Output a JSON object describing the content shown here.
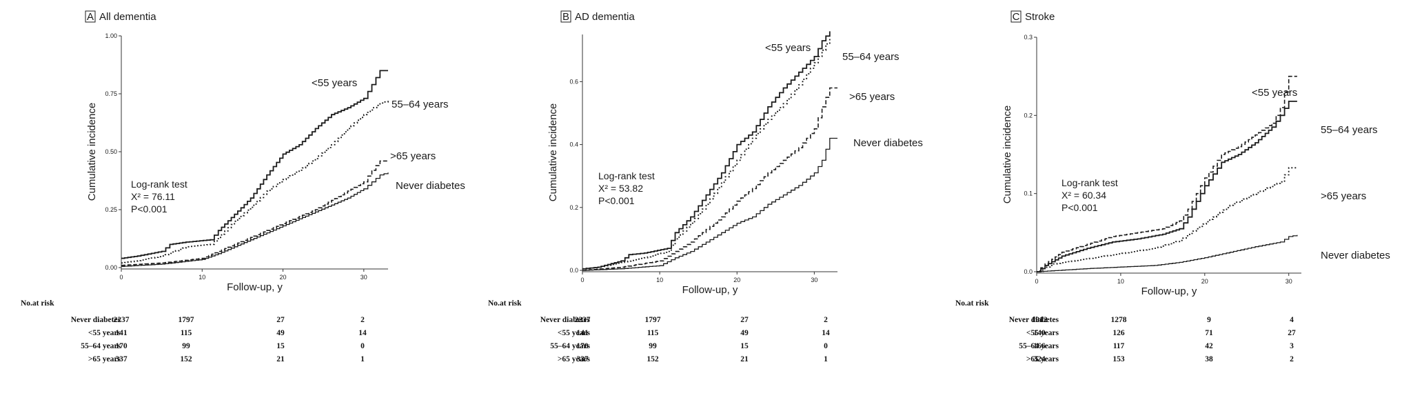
{
  "panels": [
    {
      "letter": "A",
      "title": "All dementia",
      "ylabel": "Cumulative incidence",
      "xlabel": "Follow-up, y",
      "annotation": [
        "Log-rank test",
        "X² = 76.11",
        "P<0.001"
      ],
      "table_title": "No.at risk"
    },
    {
      "letter": "B",
      "title": "AD dementia",
      "ylabel": "Cumulative incidence",
      "xlabel": "Follow-up, y",
      "annotation": [
        "Log-rank test",
        "X² = 53.82",
        "P<0.001"
      ],
      "table_title": "No.at risk"
    },
    {
      "letter": "C",
      "title": "Stroke",
      "ylabel": "Cumulative incidence",
      "xlabel": "Follow-up, y",
      "annotation": [
        "Log-rank test",
        "X² = 60.34",
        "P<0.001"
      ],
      "table_title": "No.at risk"
    }
  ],
  "chart_data": [
    {
      "type": "line",
      "title": "All dementia",
      "xlabel": "Follow-up, y",
      "ylabel": "Cumulative incidence",
      "xlim": [
        0,
        33
      ],
      "ylim": [
        0,
        1.0
      ],
      "xticks": [
        0,
        10,
        20,
        30
      ],
      "xtick_labels": [
        "0",
        "10",
        "20",
        "30"
      ],
      "yticks": [
        0,
        0.25,
        0.5,
        0.75,
        1.0
      ],
      "ytick_labels": [
        "0.00",
        "0.25",
        "0.50",
        "0.75",
        "1.00"
      ],
      "series": [
        {
          "name": "<55 years",
          "dash": "solid",
          "x": [
            0,
            2,
            5,
            6,
            8,
            11,
            12,
            14,
            16,
            18,
            20,
            22,
            24,
            26,
            28,
            30,
            31,
            32,
            33
          ],
          "y": [
            0.04,
            0.05,
            0.07,
            0.1,
            0.11,
            0.12,
            0.16,
            0.23,
            0.3,
            0.4,
            0.49,
            0.53,
            0.6,
            0.66,
            0.69,
            0.73,
            0.79,
            0.85,
            0.85
          ]
        },
        {
          "name": "55–64 years",
          "dash": "dot",
          "x": [
            0,
            2,
            5,
            8,
            11,
            12,
            14,
            16,
            18,
            20,
            22,
            24,
            26,
            28,
            30,
            32,
            33
          ],
          "y": [
            0.02,
            0.03,
            0.05,
            0.09,
            0.1,
            0.13,
            0.2,
            0.26,
            0.33,
            0.38,
            0.42,
            0.47,
            0.53,
            0.6,
            0.66,
            0.71,
            0.72
          ]
        },
        {
          "name": ">65 years",
          "dash": "dash",
          "x": [
            0,
            5,
            10,
            12,
            14,
            16,
            18,
            20,
            22,
            24,
            26,
            28,
            30,
            31,
            32,
            33
          ],
          "y": [
            0.01,
            0.02,
            0.04,
            0.07,
            0.1,
            0.13,
            0.16,
            0.19,
            0.22,
            0.25,
            0.29,
            0.33,
            0.37,
            0.42,
            0.46,
            0.46
          ]
        },
        {
          "name": "Never diabetes",
          "dash": "solid-thin",
          "x": [
            0,
            5,
            10,
            12,
            14,
            16,
            18,
            20,
            22,
            24,
            26,
            28,
            30,
            31,
            32,
            33
          ],
          "y": [
            0.005,
            0.015,
            0.035,
            0.06,
            0.09,
            0.12,
            0.15,
            0.18,
            0.21,
            0.24,
            0.27,
            0.3,
            0.34,
            0.37,
            0.4,
            0.41
          ]
        }
      ],
      "risk_table": {
        "columns": [
          0,
          10,
          20,
          30
        ],
        "rows": [
          {
            "label": "Never diabetes",
            "values": [
              2237,
              1797,
              27,
              2
            ]
          },
          {
            "label": "<55 years",
            "values": [
              141,
              115,
              49,
              14
            ]
          },
          {
            "label": "55–64 years",
            "values": [
              170,
              99,
              15,
              0
            ]
          },
          {
            "label": ">65 years",
            "values": [
              337,
              152,
              21,
              1
            ]
          }
        ]
      }
    },
    {
      "type": "line",
      "title": "AD dementia",
      "xlabel": "Follow-up, y",
      "ylabel": "Cumulative incidence",
      "xlim": [
        0,
        33
      ],
      "ylim": [
        0,
        0.75
      ],
      "xticks": [
        0,
        10,
        20,
        30
      ],
      "xtick_labels": [
        "0",
        "10",
        "20",
        "30"
      ],
      "yticks": [
        0,
        0.2,
        0.4,
        0.6
      ],
      "ytick_labels": [
        "0.0",
        "0.2",
        "0.4",
        "0.6"
      ],
      "series": [
        {
          "name": "<55 years",
          "dash": "solid",
          "x": [
            0,
            2,
            5,
            6,
            8,
            11,
            12,
            14,
            16,
            18,
            20,
            22,
            24,
            26,
            28,
            30,
            31,
            32
          ],
          "y": [
            0.005,
            0.01,
            0.03,
            0.05,
            0.055,
            0.07,
            0.12,
            0.17,
            0.24,
            0.31,
            0.4,
            0.44,
            0.52,
            0.58,
            0.63,
            0.68,
            0.73,
            0.76
          ]
        },
        {
          "name": "55–64 years",
          "dash": "dot",
          "x": [
            0,
            2,
            5,
            8,
            11,
            12,
            14,
            16,
            18,
            20,
            22,
            24,
            26,
            28,
            30,
            32
          ],
          "y": [
            0.005,
            0.01,
            0.025,
            0.04,
            0.06,
            0.1,
            0.15,
            0.21,
            0.28,
            0.35,
            0.42,
            0.48,
            0.53,
            0.59,
            0.66,
            0.74
          ]
        },
        {
          "name": ">65 years",
          "dash": "dash",
          "x": [
            0,
            5,
            10,
            12,
            14,
            16,
            18,
            20,
            22,
            24,
            26,
            28,
            30,
            31,
            32,
            33
          ],
          "y": [
            0.0,
            0.01,
            0.03,
            0.06,
            0.09,
            0.13,
            0.17,
            0.22,
            0.26,
            0.31,
            0.35,
            0.39,
            0.45,
            0.52,
            0.58,
            0.58
          ]
        },
        {
          "name": "Never diabetes",
          "dash": "solid-thin",
          "x": [
            0,
            5,
            10,
            12,
            14,
            16,
            18,
            20,
            22,
            24,
            26,
            28,
            30,
            31,
            32,
            33
          ],
          "y": [
            0.0,
            0.005,
            0.015,
            0.04,
            0.06,
            0.09,
            0.12,
            0.15,
            0.17,
            0.21,
            0.24,
            0.27,
            0.31,
            0.35,
            0.42,
            0.42
          ]
        }
      ],
      "risk_table": {
        "columns": [
          0,
          10,
          20,
          30
        ],
        "rows": [
          {
            "label": "Never diabetes",
            "values": [
              2237,
              1797,
              27,
              2
            ]
          },
          {
            "label": "<55 years",
            "values": [
              141,
              115,
              49,
              14
            ]
          },
          {
            "label": "55–64 years",
            "values": [
              170,
              99,
              15,
              0
            ]
          },
          {
            "label": ">65 years",
            "values": [
              337,
              152,
              21,
              1
            ]
          }
        ]
      }
    },
    {
      "type": "line",
      "title": "Stroke",
      "xlabel": "Follow-up, y",
      "ylabel": "Cumulative incidence",
      "xlim": [
        0,
        31.5
      ],
      "ylim": [
        0,
        0.3
      ],
      "xticks": [
        0,
        10,
        20,
        30
      ],
      "xtick_labels": [
        "0",
        "10",
        "20",
        "30"
      ],
      "yticks": [
        0,
        0.1,
        0.2,
        0.3
      ],
      "ytick_labels": [
        "0.0",
        "0.1",
        "0.2",
        "0.3"
      ],
      "series": [
        {
          "name": "<55 years",
          "dash": "dash",
          "x": [
            0,
            1,
            3,
            6,
            9,
            12,
            15,
            17,
            18,
            19,
            20,
            21,
            22,
            24,
            26,
            28,
            29,
            30,
            31
          ],
          "y": [
            0.0,
            0.01,
            0.025,
            0.035,
            0.045,
            0.05,
            0.055,
            0.065,
            0.08,
            0.1,
            0.12,
            0.135,
            0.15,
            0.16,
            0.175,
            0.19,
            0.21,
            0.25,
            0.25
          ]
        },
        {
          "name": "55–64 years",
          "dash": "solid",
          "x": [
            0,
            1,
            3,
            6,
            9,
            12,
            15,
            17,
            18,
            19,
            20,
            21,
            22,
            24,
            26,
            28,
            29,
            30,
            31
          ],
          "y": [
            0.0,
            0.008,
            0.02,
            0.03,
            0.038,
            0.042,
            0.048,
            0.055,
            0.07,
            0.09,
            0.11,
            0.125,
            0.14,
            0.15,
            0.165,
            0.185,
            0.2,
            0.218,
            0.218
          ]
        },
        {
          "name": ">65 years",
          "dash": "dot",
          "x": [
            0,
            2,
            5,
            8,
            11,
            14,
            17,
            19,
            21,
            23,
            25,
            27,
            29,
            30,
            31
          ],
          "y": [
            0.0,
            0.01,
            0.015,
            0.02,
            0.025,
            0.03,
            0.04,
            0.055,
            0.07,
            0.085,
            0.095,
            0.105,
            0.115,
            0.133,
            0.133
          ]
        },
        {
          "name": "Never diabetes",
          "dash": "solid-thin",
          "x": [
            0,
            3,
            6,
            10,
            14,
            17,
            20,
            23,
            26,
            29,
            30,
            31
          ],
          "y": [
            0.0,
            0.002,
            0.004,
            0.006,
            0.008,
            0.012,
            0.018,
            0.025,
            0.032,
            0.038,
            0.045,
            0.047
          ]
        }
      ],
      "risk_table": {
        "columns": [
          0,
          10,
          20,
          30
        ],
        "rows": [
          {
            "label": "Never diabetes",
            "values": [
              1912,
              1278,
              9,
              4
            ]
          },
          {
            "label": "<55 years",
            "values": [
              140,
              126,
              71,
              27
            ]
          },
          {
            "label": "55–64 years",
            "values": [
              166,
              117,
              42,
              3
            ]
          },
          {
            "label": ">65 years",
            "values": [
              324,
              153,
              38,
              2
            ]
          }
        ]
      }
    }
  ]
}
